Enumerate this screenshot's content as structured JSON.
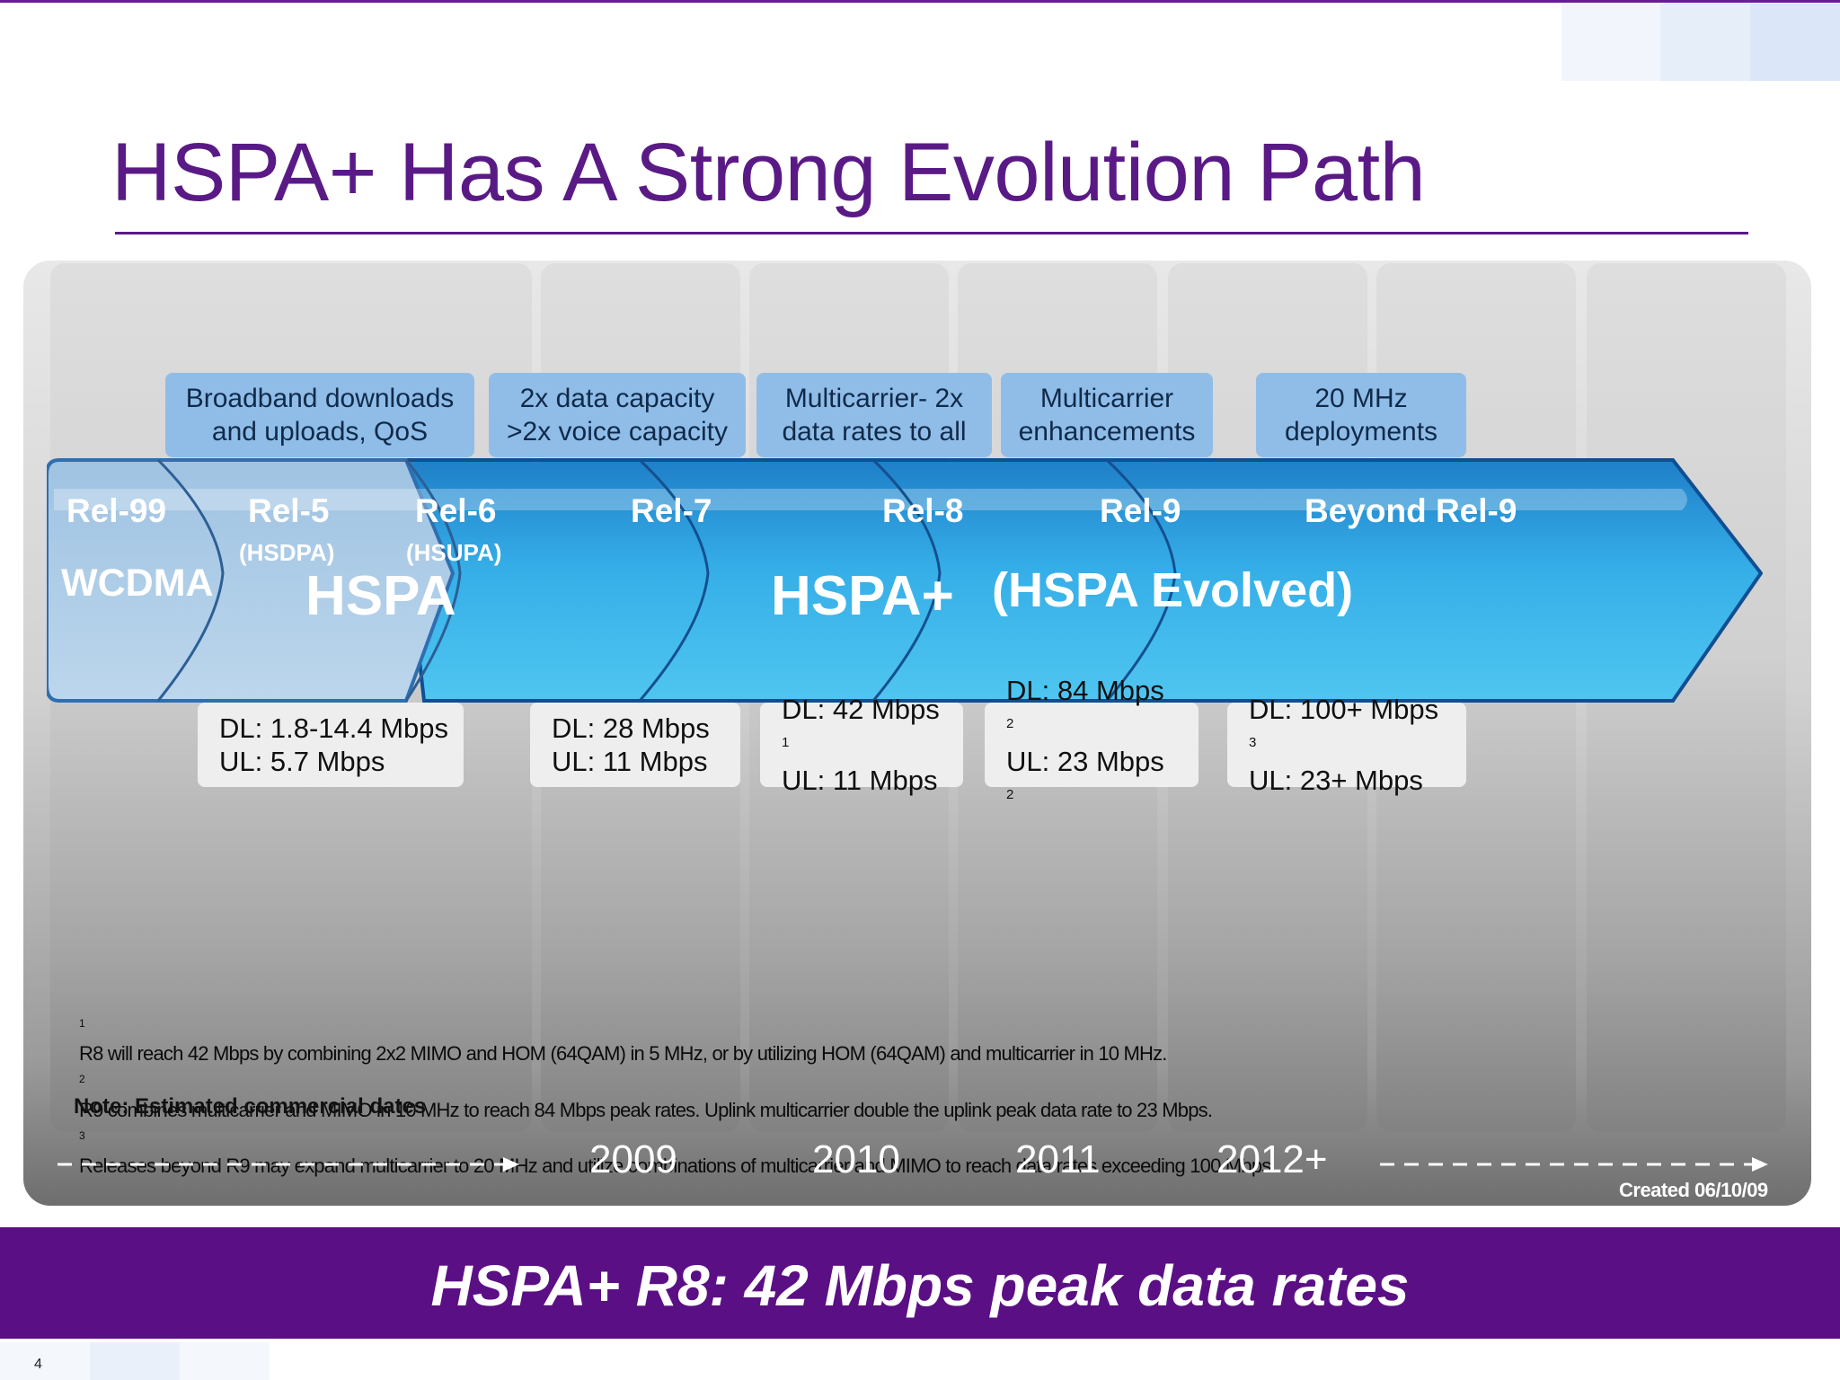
{
  "slide": {
    "title": "HSPA+ Has A Strong Evolution Path",
    "page_number": "4",
    "banner": "HSPA+ R8: 42 Mbps peak data rates",
    "created": "Created 06/10/09",
    "note": "Note: Estimated commercial dates",
    "colors": {
      "title": "#5a1a86",
      "banner": "#5b0f84",
      "feature_box": "#8fbde8",
      "hspa_plus_arrow": "#3bb6ea",
      "hspa_arrow": "#b5d1e8"
    }
  },
  "features": [
    {
      "line1": "Broadband downloads",
      "line2": "and uploads, QoS"
    },
    {
      "line1": "2x data capacity",
      "line2": ">2x voice capacity"
    },
    {
      "line1": "Multicarrier- 2x",
      "line2": "data rates to all"
    },
    {
      "line1": "Multicarrier",
      "line2": "enhancements"
    },
    {
      "line1": "20 MHz",
      "line2": "deployments"
    }
  ],
  "releases": {
    "rel99": "Rel-99",
    "rel5": "Rel-5",
    "rel5_sub": "(HSDPA)",
    "rel6": "Rel-6",
    "rel6_sub": "(HSUPA)",
    "rel7": "Rel-7",
    "rel8": "Rel-8",
    "rel9": "Rel-9",
    "beyond": "Beyond Rel-9",
    "wcdma": "WCDMA",
    "hspa": "HSPA",
    "hspa_plus": "HSPA+",
    "hspa_evolved": "(HSPA Evolved)"
  },
  "rates": [
    {
      "dl": "DL: 1.8-14.4 Mbps",
      "dl_sup": "",
      "ul": "UL: 5.7 Mbps",
      "ul_sup": ""
    },
    {
      "dl": "DL: 28 Mbps",
      "dl_sup": "",
      "ul": "UL: 11 Mbps",
      "ul_sup": ""
    },
    {
      "dl": "DL: 42 Mbps",
      "dl_sup": "1",
      "ul": "UL: 11 Mbps",
      "ul_sup": ""
    },
    {
      "dl": "DL: 84 Mbps",
      "dl_sup": "2",
      "ul": "UL: 23 Mbps",
      "ul_sup": "2"
    },
    {
      "dl": "DL: 100+ Mbps",
      "dl_sup": "3",
      "ul": "UL: 23+ Mbps",
      "ul_sup": ""
    }
  ],
  "footnotes": [
    {
      "mark": "1",
      "text": "R8 will reach 42 Mbps by combining 2x2 MIMO and HOM (64QAM) in 5 MHz, or by utilizing HOM (64QAM) and multicarrier in 10 MHz."
    },
    {
      "mark": "2",
      "text": "R9 combines multicarrier and MIMO  in 10 MHz to reach 84 Mbps peak rates. Uplink multicarrier double the uplink  peak data rate to 23 Mbps."
    },
    {
      "mark": "3",
      "text": "Releases beyond  R9 may expand multicarrier  to 20 MHz and utilize combinations of multicarrier and MIMO to reach data rates exceeding 100 Mbps."
    }
  ],
  "years": [
    "2009",
    "2010",
    "2011",
    "2012+"
  ]
}
